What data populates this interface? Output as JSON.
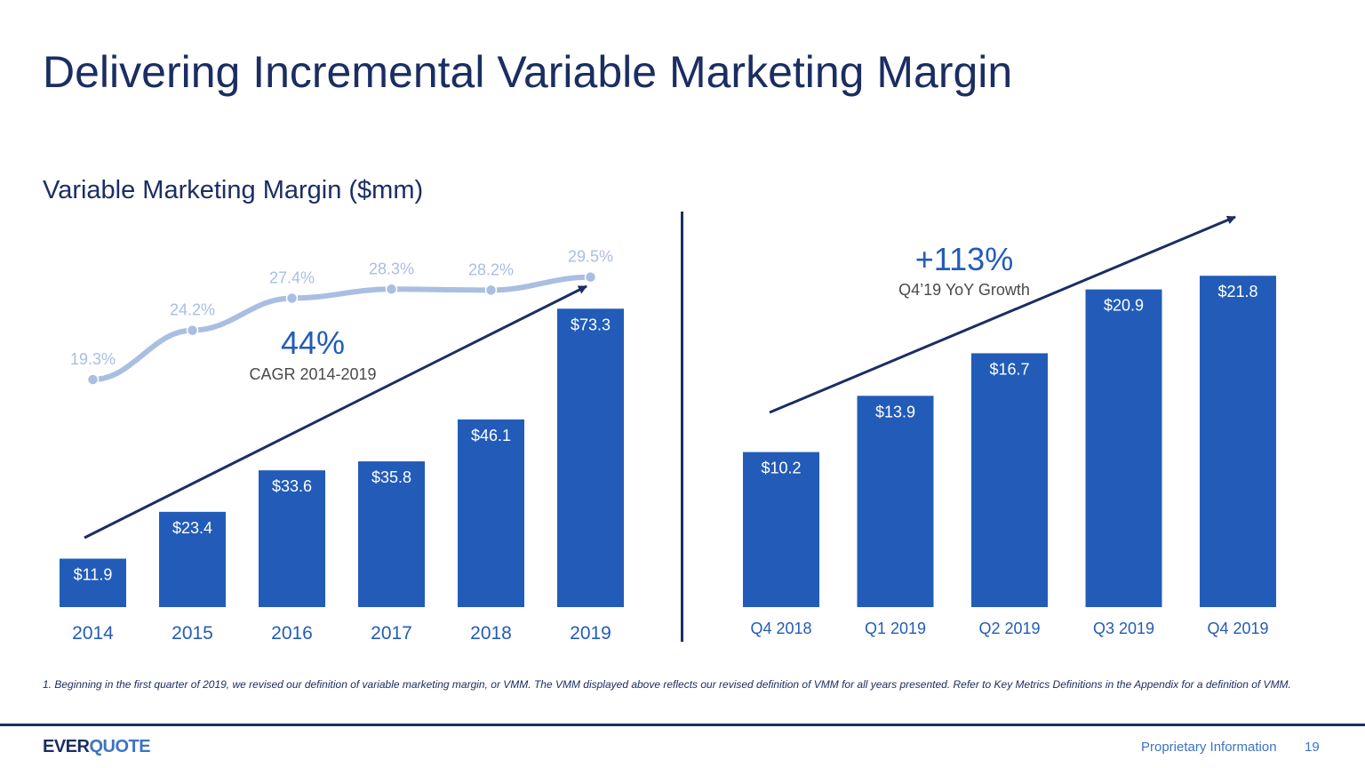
{
  "page": {
    "title": "Delivering Incremental Variable Marketing Margin",
    "subtitle": "Variable Marketing Margin ($mm)",
    "footnote": "1. Beginning in the first quarter of 2019, we revised our definition of variable marketing margin, or VMM.  The VMM displayed above reflects our revised definition of VMM for all years presented. Refer to Key Metrics Definitions in the Appendix for a definition of VMM.",
    "logo": {
      "part1": "EVER",
      "part2": "QUOTE"
    },
    "footer_label": "Proprietary Information",
    "page_number": "19"
  },
  "colors": {
    "bar": "#225cb8",
    "line": "#a9bee2",
    "title": "#1b2e63",
    "arrow": "#1b2e63",
    "accent": "#225cb8"
  },
  "chart_data": [
    {
      "type": "bar",
      "categories": [
        "2014",
        "2015",
        "2016",
        "2017",
        "2018",
        "2019"
      ],
      "values": [
        11.9,
        23.4,
        33.6,
        35.8,
        46.1,
        73.3
      ],
      "data_labels": [
        "$11.9",
        "$23.4",
        "$33.6",
        "$35.8",
        "$46.1",
        "$73.3"
      ],
      "secondary_line": {
        "type": "line",
        "values": [
          19.3,
          24.2,
          27.4,
          28.3,
          28.2,
          29.5
        ],
        "data_labels": [
          "19.3%",
          "24.2%",
          "27.4%",
          "28.3%",
          "28.2%",
          "29.5%"
        ]
      },
      "annotation": {
        "value": "44%",
        "label": "CAGR 2014-2019"
      },
      "trend_arrow": true,
      "grid": false
    },
    {
      "type": "bar",
      "categories": [
        "Q4 2018",
        "Q1 2019",
        "Q2 2019",
        "Q3 2019",
        "Q4 2019"
      ],
      "values": [
        10.2,
        13.9,
        16.7,
        20.9,
        21.8
      ],
      "data_labels": [
        "$10.2",
        "$13.9",
        "$16.7",
        "$20.9",
        "$21.8"
      ],
      "annotation": {
        "value": "+113%",
        "label": "Q4’19 YoY Growth"
      },
      "trend_arrow": true,
      "grid": false
    }
  ]
}
